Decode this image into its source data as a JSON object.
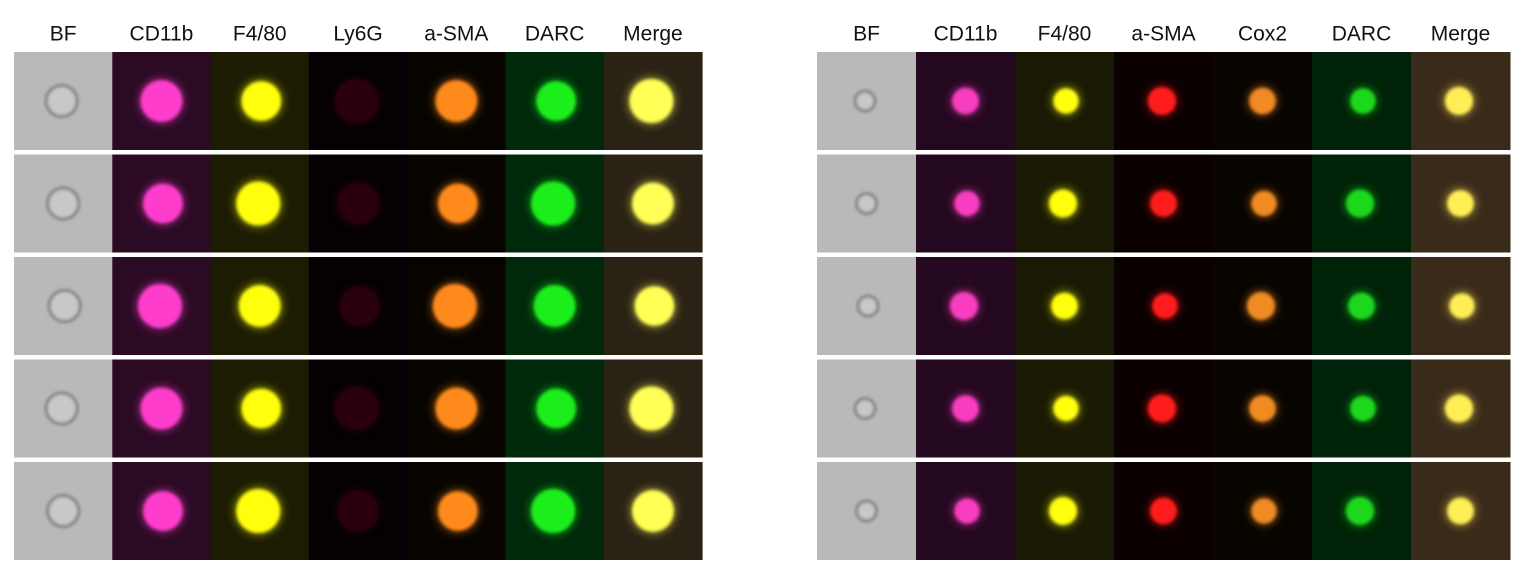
{
  "panels": [
    {
      "headers": [
        "BF",
        "CD11b",
        "F4/80",
        "Ly6G",
        "a-SMA",
        "DARC",
        "Merge"
      ]
    },
    {
      "headers": [
        "BF",
        "CD11b",
        "F4/80",
        "a-SMA",
        "Cox2",
        "DARC",
        "Merge"
      ]
    }
  ]
}
